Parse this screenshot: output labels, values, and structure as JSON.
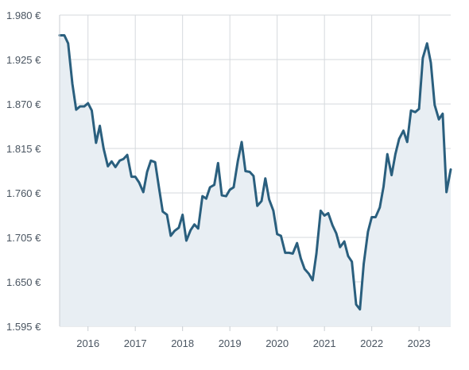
{
  "chart_data": {
    "type": "area",
    "title": "",
    "xlabel": "",
    "ylabel": "",
    "x_ticks": [
      "2016",
      "2017",
      "2018",
      "2019",
      "2020",
      "2021",
      "2022",
      "2023"
    ],
    "y_ticks": [
      "1.980 €",
      "1.925 €",
      "1.870 €",
      "1.815 €",
      "1.760 €",
      "1.705 €",
      "1.650 €",
      "1.595 €"
    ],
    "y_tick_values": [
      1980,
      1925,
      1870,
      1815,
      1760,
      1705,
      1650,
      1595
    ],
    "ylim": [
      1595,
      1980
    ],
    "xlim": [
      2015.4,
      2023.67
    ],
    "grid": true,
    "colors": {
      "line": "#2a5f7e",
      "fill": "#e8eef3",
      "grid": "#d5d9dd"
    },
    "series": [
      {
        "x": [
          2015.4,
          2015.5,
          2015.58,
          2015.67,
          2015.75,
          2015.83,
          2015.92,
          2016.0,
          2016.08,
          2016.17,
          2016.25,
          2016.33,
          2016.42,
          2016.5,
          2016.58,
          2016.67,
          2016.75,
          2016.83,
          2016.92,
          2017.0,
          2017.08,
          2017.17,
          2017.25,
          2017.33,
          2017.42,
          2017.5,
          2017.58,
          2017.67,
          2017.75,
          2017.83,
          2017.92,
          2018.0,
          2018.08,
          2018.17,
          2018.25,
          2018.33,
          2018.42,
          2018.5,
          2018.58,
          2018.67,
          2018.75,
          2018.83,
          2018.92,
          2019.0,
          2019.08,
          2019.17,
          2019.25,
          2019.33,
          2019.42,
          2019.5,
          2019.58,
          2019.67,
          2019.75,
          2019.83,
          2019.92,
          2020.0,
          2020.08,
          2020.17,
          2020.25,
          2020.33,
          2020.42,
          2020.5,
          2020.58,
          2020.67,
          2020.75,
          2020.83,
          2020.92,
          2021.0,
          2021.08,
          2021.17,
          2021.25,
          2021.33,
          2021.42,
          2021.5,
          2021.58,
          2021.67,
          2021.75,
          2021.83,
          2021.92,
          2022.0,
          2022.08,
          2022.17,
          2022.25,
          2022.33,
          2022.42,
          2022.5,
          2022.58,
          2022.67,
          2022.75,
          2022.83,
          2022.92,
          2023.0,
          2023.08,
          2023.17,
          2023.25,
          2023.33,
          2023.42,
          2023.5,
          2023.58,
          2023.67
        ],
        "values": [
          1955,
          1955,
          1945,
          1895,
          1863,
          1867,
          1867,
          1871,
          1862,
          1822,
          1843,
          1815,
          1793,
          1799,
          1792,
          1800,
          1802,
          1807,
          1780,
          1780,
          1773,
          1761,
          1786,
          1800,
          1798,
          1767,
          1737,
          1733,
          1707,
          1713,
          1717,
          1733,
          1701,
          1714,
          1721,
          1716,
          1756,
          1753,
          1767,
          1770,
          1797,
          1757,
          1756,
          1764,
          1767,
          1800,
          1823,
          1787,
          1786,
          1781,
          1744,
          1750,
          1778,
          1752,
          1738,
          1709,
          1707,
          1686,
          1686,
          1685,
          1698,
          1679,
          1666,
          1660,
          1652,
          1685,
          1738,
          1732,
          1735,
          1720,
          1710,
          1693,
          1700,
          1682,
          1675,
          1622,
          1616,
          1672,
          1712,
          1730,
          1730,
          1742,
          1768,
          1808,
          1782,
          1808,
          1827,
          1837,
          1823,
          1862,
          1860,
          1864,
          1927,
          1945,
          1921,
          1869,
          1851,
          1858,
          1761,
          1789
        ]
      }
    ]
  }
}
